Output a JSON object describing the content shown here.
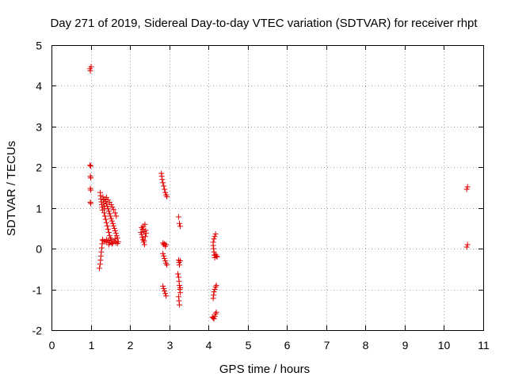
{
  "chart_data": {
    "type": "scatter",
    "title": "Day 271 of 2019, Sidereal Day-to-day VTEC variation (SDTVAR) for receiver rhpt",
    "xlabel": "GPS time / hours",
    "ylabel": "SDTVAR / TECUs",
    "xlim": [
      0,
      11
    ],
    "ylim": [
      -2,
      5
    ],
    "xticks": [
      0,
      1,
      2,
      3,
      4,
      5,
      6,
      7,
      8,
      9,
      10,
      11
    ],
    "yticks": [
      -2,
      -1,
      0,
      1,
      2,
      3,
      4,
      5
    ],
    "grid": true,
    "marker": "+",
    "color": "#e00000",
    "series": [
      {
        "name": "SDTVAR",
        "points": [
          [
            0.98,
            4.42
          ],
          [
            0.99,
            4.37
          ],
          [
            1.01,
            4.47
          ],
          [
            0.98,
            2.05
          ],
          [
            1.0,
            2.03
          ],
          [
            0.99,
            1.78
          ],
          [
            1.0,
            1.74
          ],
          [
            0.99,
            1.48
          ],
          [
            1.0,
            1.44
          ],
          [
            0.99,
            1.14
          ],
          [
            1.0,
            1.11
          ],
          [
            1.22,
            -0.48
          ],
          [
            1.24,
            -0.38
          ],
          [
            1.25,
            -0.28
          ],
          [
            1.26,
            -0.18
          ],
          [
            1.27,
            -0.08
          ],
          [
            1.28,
            0.02
          ],
          [
            1.29,
            0.12
          ],
          [
            1.3,
            0.22
          ],
          [
            1.31,
            0.2
          ],
          [
            1.24,
            1.38
          ],
          [
            1.25,
            1.3
          ],
          [
            1.26,
            1.22
          ],
          [
            1.27,
            1.15
          ],
          [
            1.28,
            1.08
          ],
          [
            1.29,
            1.02
          ],
          [
            1.3,
            0.95
          ],
          [
            1.31,
            1.27
          ],
          [
            1.32,
            1.2
          ],
          [
            1.33,
            1.12
          ],
          [
            1.34,
            1.05
          ],
          [
            1.35,
            0.98
          ],
          [
            1.34,
            0.88
          ],
          [
            1.36,
            0.8
          ],
          [
            1.38,
            0.72
          ],
          [
            1.4,
            0.64
          ],
          [
            1.42,
            0.56
          ],
          [
            1.44,
            0.48
          ],
          [
            1.46,
            0.4
          ],
          [
            1.48,
            0.32
          ],
          [
            1.5,
            0.26
          ],
          [
            1.52,
            0.22
          ],
          [
            1.36,
            1.22
          ],
          [
            1.38,
            1.16
          ],
          [
            1.4,
            1.1
          ],
          [
            1.42,
            1.04
          ],
          [
            1.44,
            0.98
          ],
          [
            1.46,
            0.92
          ],
          [
            1.48,
            0.86
          ],
          [
            1.5,
            0.8
          ],
          [
            1.52,
            0.74
          ],
          [
            1.54,
            0.68
          ],
          [
            1.56,
            0.62
          ],
          [
            1.58,
            0.56
          ],
          [
            1.6,
            0.5
          ],
          [
            1.62,
            0.44
          ],
          [
            1.64,
            0.38
          ],
          [
            1.66,
            0.32
          ],
          [
            1.68,
            0.26
          ],
          [
            1.4,
            1.26
          ],
          [
            1.44,
            1.2
          ],
          [
            1.48,
            1.14
          ],
          [
            1.52,
            1.08
          ],
          [
            1.55,
            1.02
          ],
          [
            1.58,
            0.96
          ],
          [
            1.62,
            0.88
          ],
          [
            1.65,
            0.8
          ],
          [
            1.36,
            0.18
          ],
          [
            1.4,
            0.16
          ],
          [
            1.44,
            0.2
          ],
          [
            1.48,
            0.15
          ],
          [
            1.52,
            0.19
          ],
          [
            1.56,
            0.14
          ],
          [
            1.6,
            0.18
          ],
          [
            1.64,
            0.15
          ],
          [
            1.68,
            0.13
          ],
          [
            1.7,
            0.17
          ],
          [
            1.4,
            0.22
          ],
          [
            1.46,
            0.1
          ],
          [
            1.54,
            0.12
          ],
          [
            1.62,
            0.24
          ],
          [
            2.28,
            0.4
          ],
          [
            2.3,
            0.35
          ],
          [
            2.31,
            0.28
          ],
          [
            2.32,
            0.48
          ],
          [
            2.33,
            0.22
          ],
          [
            2.34,
            0.55
          ],
          [
            2.35,
            0.16
          ],
          [
            2.36,
            0.42
          ],
          [
            2.37,
            0.1
          ],
          [
            2.38,
            0.6
          ],
          [
            2.39,
            0.3
          ],
          [
            2.4,
            0.45
          ],
          [
            2.41,
            0.38
          ],
          [
            2.3,
            0.52
          ],
          [
            2.36,
            0.2
          ],
          [
            2.8,
            1.85
          ],
          [
            2.81,
            1.78
          ],
          [
            2.82,
            1.7
          ],
          [
            2.84,
            1.62
          ],
          [
            2.86,
            1.54
          ],
          [
            2.88,
            1.46
          ],
          [
            2.9,
            1.38
          ],
          [
            2.92,
            1.32
          ],
          [
            2.94,
            1.28
          ],
          [
            2.84,
            0.14
          ],
          [
            2.86,
            0.1
          ],
          [
            2.88,
            0.12
          ],
          [
            2.9,
            0.06
          ],
          [
            2.92,
            0.1
          ],
          [
            2.84,
            -0.12
          ],
          [
            2.86,
            -0.18
          ],
          [
            2.88,
            -0.24
          ],
          [
            2.9,
            -0.3
          ],
          [
            2.92,
            -0.36
          ],
          [
            2.94,
            -0.4
          ],
          [
            2.84,
            -0.92
          ],
          [
            2.86,
            -0.98
          ],
          [
            2.88,
            -1.04
          ],
          [
            2.9,
            -1.1
          ],
          [
            2.92,
            -1.16
          ],
          [
            3.24,
            0.78
          ],
          [
            3.26,
            0.62
          ],
          [
            3.28,
            0.55
          ],
          [
            3.24,
            -0.28
          ],
          [
            3.25,
            -0.34
          ],
          [
            3.26,
            -0.4
          ],
          [
            3.28,
            -0.3
          ],
          [
            3.22,
            -0.62
          ],
          [
            3.24,
            -0.7
          ],
          [
            3.25,
            -0.8
          ],
          [
            3.26,
            -0.9
          ],
          [
            3.27,
            -1.0
          ],
          [
            3.28,
            -1.08
          ],
          [
            3.24,
            -1.18
          ],
          [
            3.25,
            -1.28
          ],
          [
            3.26,
            -1.38
          ],
          [
            3.28,
            -0.96
          ],
          [
            4.12,
            0.08
          ],
          [
            4.13,
            0.0
          ],
          [
            4.14,
            -0.08
          ],
          [
            4.15,
            -0.16
          ],
          [
            4.16,
            -0.22
          ],
          [
            4.12,
            0.16
          ],
          [
            4.14,
            0.24
          ],
          [
            4.16,
            0.3
          ],
          [
            4.18,
            0.36
          ],
          [
            4.18,
            -0.14
          ],
          [
            4.2,
            -0.18
          ],
          [
            4.22,
            -0.2
          ],
          [
            4.12,
            -1.22
          ],
          [
            4.13,
            -1.14
          ],
          [
            4.14,
            -1.06
          ],
          [
            4.16,
            -1.0
          ],
          [
            4.18,
            -0.94
          ],
          [
            4.2,
            -0.9
          ],
          [
            4.1,
            -1.68
          ],
          [
            4.12,
            -1.7
          ],
          [
            4.14,
            -1.72
          ],
          [
            4.16,
            -1.66
          ],
          [
            4.18,
            -1.6
          ],
          [
            4.2,
            -1.56
          ],
          [
            10.6,
            1.52
          ],
          [
            10.58,
            1.46
          ],
          [
            10.6,
            0.1
          ],
          [
            10.58,
            0.04
          ]
        ]
      }
    ]
  }
}
